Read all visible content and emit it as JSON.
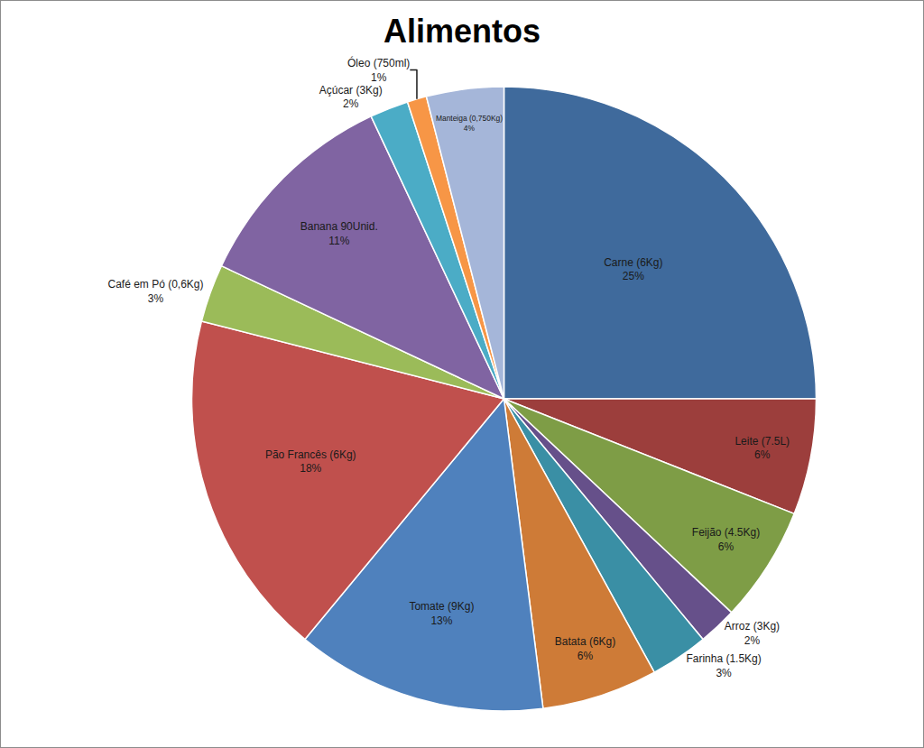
{
  "chart_data": {
    "type": "pie",
    "title": "Alimentos",
    "categories": [
      "Carne (6Kg)",
      "Leite (7.5L)",
      "Feijão (4.5Kg)",
      "Arroz (3Kg)",
      "Farinha (1.5Kg)",
      "Batata (6Kg)",
      "Tomate (9Kg)",
      "Pão Francês (6Kg)",
      "Café em Pó (0,6Kg)",
      "Banana 90Unid.",
      "Açúcar (3Kg)",
      "Óleo (750ml)",
      "Manteiga (0,750Kg)"
    ],
    "values": [
      25,
      6,
      6,
      2,
      3,
      6,
      13,
      18,
      3,
      11,
      2,
      1,
      4
    ],
    "value_labels": [
      "25%",
      "6%",
      "6%",
      "2%",
      "3%",
      "6%",
      "13%",
      "18%",
      "3%",
      "11%",
      "2%",
      "1%",
      "4%"
    ],
    "colors": [
      "#3f6a9c",
      "#9c3e3c",
      "#7e9d46",
      "#66508a",
      "#3a8fa5",
      "#ce7b37",
      "#4f81bd",
      "#c0504d",
      "#9bbb59",
      "#8064a2",
      "#4bacc6",
      "#f79646",
      "#a5b6d9"
    ],
    "data_labels": true
  }
}
